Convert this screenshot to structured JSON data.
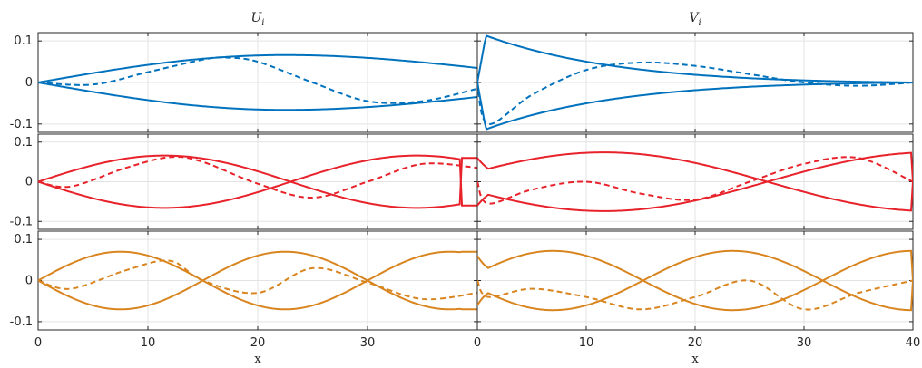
{
  "chart_data": {
    "type": "line",
    "layout": "3 rows x 2 columns of line plots",
    "column_titles": {
      "U": "U",
      "V": "V",
      "subscript": "i"
    },
    "xlabel": "x",
    "x_ticks_left": [
      "0",
      "10",
      "20",
      "30",
      "0"
    ],
    "x_ticks_right": [
      "10",
      "20",
      "30",
      "40"
    ],
    "xlim": [
      0,
      40
    ],
    "y_ticks": [
      "0.1",
      "0",
      "-0.1"
    ],
    "ylim": [
      -0.12,
      0.12
    ],
    "grid": true,
    "rows": [
      {
        "color": "#0072BD",
        "U": {
          "envelope_amplitude": 0.066,
          "envelope_peak_x": 22.5,
          "end_value_at_x40": 0.035,
          "dashed_samples_x": [
            0,
            5,
            10,
            15,
            17,
            20,
            25,
            30,
            35,
            40
          ],
          "dashed_samples_y": [
            0,
            -0.005,
            0.025,
            0.055,
            0.06,
            0.05,
            0.0,
            -0.045,
            -0.045,
            -0.015
          ]
        },
        "V": {
          "envelope_peak": 0.115,
          "envelope_peak_x": 0.8,
          "envelope_at_x10": 0.06,
          "envelope_at_x20": 0.035,
          "envelope_at_x30": 0.015,
          "end_value_at_x40": 0.0,
          "dashed_samples_x": [
            0,
            1,
            5,
            10,
            15,
            20,
            25,
            30,
            35,
            40
          ],
          "dashed_samples_y": [
            0,
            -0.1,
            -0.03,
            0.03,
            0.048,
            0.04,
            0.02,
            0.0,
            -0.008,
            0
          ]
        }
      },
      {
        "color": "#E8222B",
        "U": {
          "envelope_amplitude": 0.066,
          "envelope_period": 46,
          "end_value_at_x40": 0.06,
          "dashed_samples_x": [
            0,
            3,
            8,
            12,
            15,
            20,
            25,
            30,
            35,
            40
          ],
          "dashed_samples_y": [
            0,
            -0.012,
            0.035,
            0.062,
            0.05,
            -0.005,
            -0.04,
            0.0,
            0.045,
            0.035
          ]
        },
        "V": {
          "envelope_amplitude": 0.074,
          "envelope_period": 60,
          "start_value_at_x0": 0.06,
          "end_value_at_x40": 0.0,
          "dashed_samples_x": [
            0,
            1,
            5,
            10,
            15,
            20,
            25,
            30,
            35,
            40
          ],
          "dashed_samples_y": [
            0,
            -0.055,
            -0.02,
            0.0,
            -0.03,
            -0.045,
            0.0,
            0.045,
            0.06,
            0
          ]
        }
      },
      {
        "color": "#D9851F",
        "U": {
          "envelope_amplitude": 0.07,
          "envelope_period": 30,
          "end_value_at_x40": 0.07,
          "dashed_samples_x": [
            0,
            3,
            8,
            12,
            15,
            20,
            25,
            30,
            35,
            40
          ],
          "dashed_samples_y": [
            0,
            -0.02,
            0.025,
            0.048,
            0.0,
            -0.03,
            0.03,
            -0.005,
            -0.045,
            -0.03
          ]
        },
        "V": {
          "envelope_amplitude": 0.072,
          "envelope_period": 33,
          "start_value_at_x0": 0.06,
          "end_value_at_x40": 0.0,
          "dashed_samples_x": [
            0,
            1,
            5,
            10,
            15,
            20,
            25,
            30,
            35,
            40
          ],
          "dashed_samples_y": [
            0,
            -0.04,
            -0.02,
            -0.04,
            -0.07,
            -0.04,
            0.0,
            -0.07,
            -0.03,
            0
          ]
        }
      }
    ]
  }
}
